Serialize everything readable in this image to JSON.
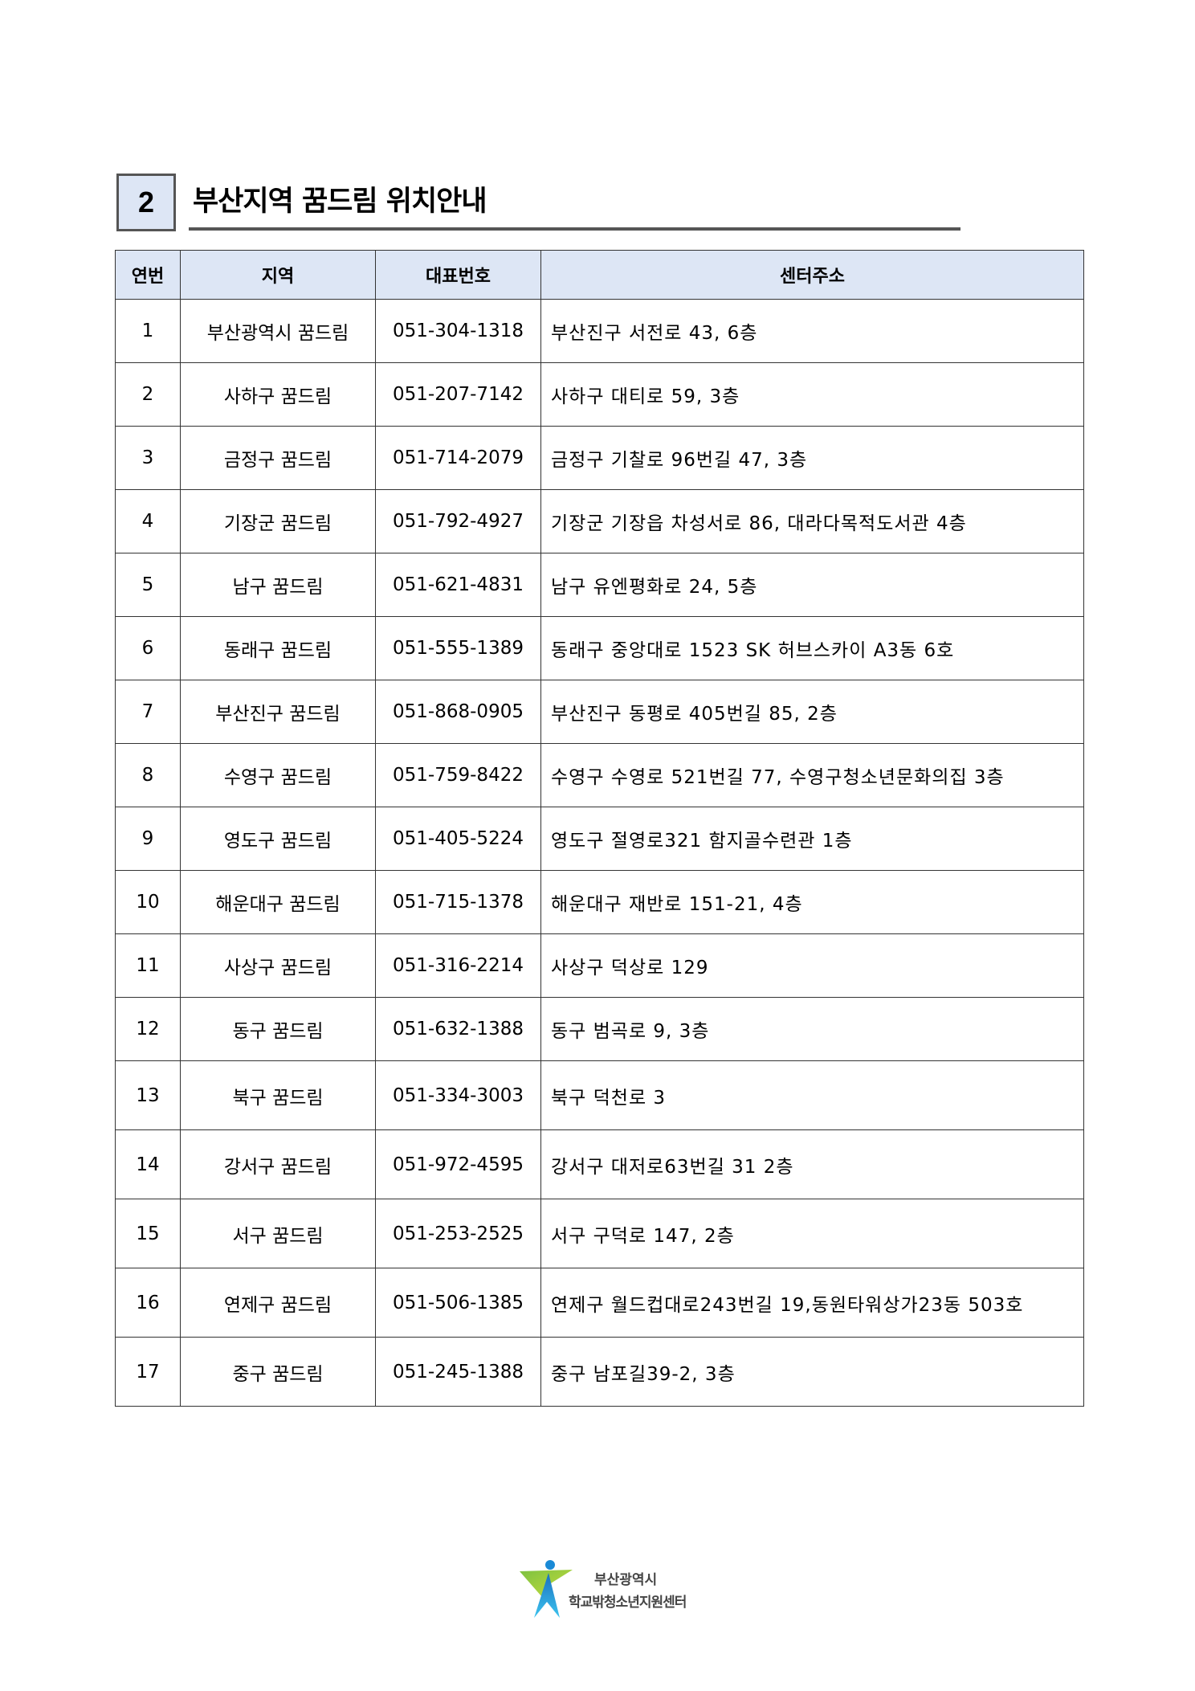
{
  "section": {
    "number": "2",
    "title": "부산지역 꿈드림 위치안내"
  },
  "table": {
    "headers": [
      "연번",
      "지역",
      "대표번호",
      "센터주소"
    ],
    "rows": [
      [
        "1",
        "부산광역시 꿈드림",
        "051-304-1318",
        "부산진구 서전로 43, 6층"
      ],
      [
        "2",
        "사하구 꿈드림",
        "051-207-7142",
        "사하구 대티로 59, 3층"
      ],
      [
        "3",
        "금정구 꿈드림",
        "051-714-2079",
        "금정구 기찰로 96번길 47, 3층"
      ],
      [
        "4",
        "기장군 꿈드림",
        "051-792-4927",
        "기장군 기장읍 차성서로 86, 대라다목적도서관 4층"
      ],
      [
        "5",
        "남구 꿈드림",
        "051-621-4831",
        "남구 유엔평화로 24, 5층"
      ],
      [
        "6",
        "동래구 꿈드림",
        "051-555-1389",
        "동래구 중앙대로 1523 SK 허브스카이 A3동 6호"
      ],
      [
        "7",
        "부산진구 꿈드림",
        "051-868-0905",
        "부산진구 동평로 405번길 85, 2층"
      ],
      [
        "8",
        "수영구 꿈드림",
        "051-759-8422",
        "수영구 수영로 521번길 77, 수영구청소년문화의집 3층"
      ],
      [
        "9",
        "영도구 꿈드림",
        "051-405-5224",
        "영도구 절영로321 함지골수련관 1층"
      ],
      [
        "10",
        "해운대구 꿈드림",
        "051-715-1378",
        "해운대구 재반로 151-21, 4층"
      ],
      [
        "11",
        "사상구 꿈드림",
        "051-316-2214",
        "사상구 덕상로 129"
      ],
      [
        "12",
        "동구 꿈드림",
        "051-632-1388",
        "동구 범곡로 9, 3층"
      ],
      [
        "13",
        "북구 꿈드림",
        "051-334-3003",
        "북구 덕천로 3"
      ],
      [
        "14",
        "강서구 꿈드림",
        "051-972-4595",
        "강서구 대저로63번길 31 2층"
      ],
      [
        "15",
        "서구 꿈드림",
        "051-253-2525",
        "서구 구덕로 147, 2층"
      ],
      [
        "16",
        "연제구 꿈드림",
        "051-506-1385",
        "연제구 월드컵대로243번길 19,동원타워상가23동 503호"
      ],
      [
        "17",
        "중구 꿈드림",
        "051-245-1388",
        "중구 남포길39-2, 3층"
      ]
    ]
  },
  "logo": {
    "line1": "부산광역시",
    "line2": "학교밖청소년지원센터"
  },
  "colors": {
    "header_bg": "#dde6f5",
    "logo_green": "#7cc142",
    "logo_blue": "#1a9ad6"
  }
}
